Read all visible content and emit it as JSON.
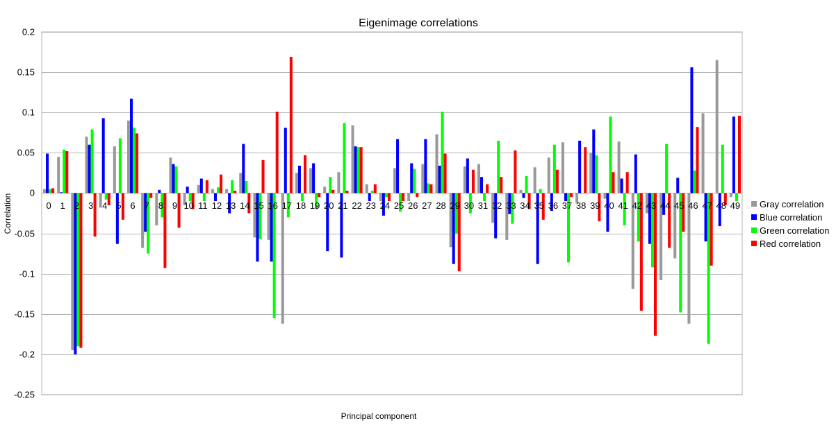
{
  "chart_data": {
    "type": "bar",
    "title": "Eigenimage correlations",
    "xlabel": "Principal component",
    "ylabel": "Correlation",
    "ylim": [
      -0.25,
      0.2
    ],
    "yticks": [
      0.2,
      0.15,
      0.1,
      0.05,
      0,
      -0.05,
      -0.1,
      -0.15,
      -0.2,
      -0.25
    ],
    "ytick_labels": [
      "0.2",
      "0.15",
      "0.1",
      "0.05",
      "0",
      "-0.05",
      "-0.1",
      "-0.15",
      "-0.2",
      "-0.25"
    ],
    "grid": "horizontal",
    "legend_position": "right",
    "categories": [
      "0",
      "1",
      "2",
      "3",
      "4",
      "5",
      "6",
      "7",
      "8",
      "9",
      "10",
      "11",
      "12",
      "13",
      "14",
      "15",
      "16",
      "17",
      "18",
      "19",
      "20",
      "21",
      "22",
      "23",
      "24",
      "25",
      "26",
      "27",
      "28",
      "29",
      "30",
      "31",
      "32",
      "33",
      "34",
      "35",
      "36",
      "37",
      "38",
      "39",
      "40",
      "41",
      "42",
      "43",
      "44",
      "45",
      "46",
      "47",
      "48",
      "49"
    ],
    "series": [
      {
        "name": "Gray correlation",
        "color": "#999999",
        "values": [
          0.005,
          0.045,
          -0.195,
          0.07,
          -0.018,
          0.058,
          0.09,
          -0.068,
          -0.04,
          0.044,
          -0.015,
          0.01,
          0.005,
          0.005,
          0.025,
          -0.055,
          -0.058,
          -0.162,
          0.025,
          0.031,
          0.008,
          0.026,
          0.084,
          0.011,
          -0.01,
          0.031,
          -0.01,
          0.036,
          0.073,
          -0.067,
          0.033,
          0.036,
          -0.037,
          -0.058,
          0.004,
          0.032,
          0.044,
          0.063,
          -0.012,
          0.05,
          -0.007,
          0.064,
          -0.119,
          -0.025,
          -0.108,
          -0.081,
          -0.162,
          0.099,
          0.165,
          -0.005
        ]
      },
      {
        "name": "Blue correlation",
        "color": "#0000ff",
        "values": [
          0.049,
          0.001,
          -0.2,
          0.06,
          0.093,
          -0.063,
          0.117,
          -0.048,
          0.004,
          0.036,
          0.008,
          0.018,
          -0.01,
          -0.025,
          0.061,
          -0.085,
          -0.085,
          0.081,
          0.034,
          0.037,
          -0.072,
          -0.08,
          0.058,
          -0.01,
          -0.028,
          0.067,
          0.037,
          0.067,
          0.034,
          -0.088,
          0.043,
          0.02,
          -0.056,
          -0.026,
          -0.006,
          -0.088,
          -0.022,
          -0.01,
          0.065,
          0.079,
          -0.048,
          0.018,
          0.048,
          -0.063,
          -0.027,
          0.019,
          0.156,
          -0.06,
          -0.041,
          0.095
        ]
      },
      {
        "name": "Green correlation",
        "color": "#00ff00",
        "values": [
          0.005,
          0.054,
          -0.19,
          0.079,
          -0.008,
          0.068,
          0.081,
          -0.075,
          -0.03,
          0.033,
          -0.01,
          -0.01,
          0.007,
          0.016,
          0.015,
          -0.057,
          -0.155,
          -0.03,
          -0.01,
          -0.02,
          0.02,
          0.087,
          0.057,
          0.003,
          -0.005,
          -0.023,
          0.03,
          0.012,
          0.101,
          -0.05,
          -0.025,
          -0.01,
          0.065,
          -0.038,
          0.021,
          0.005,
          0.06,
          -0.086,
          0.0,
          0.047,
          0.095,
          -0.04,
          -0.06,
          -0.092,
          0.061,
          -0.148,
          0.028,
          -0.187,
          0.06,
          -0.01
        ]
      },
      {
        "name": "Red correlation",
        "color": "#ff0000",
        "values": [
          0.006,
          0.052,
          -0.192,
          -0.054,
          -0.015,
          -0.033,
          0.074,
          -0.006,
          -0.093,
          -0.043,
          -0.02,
          0.016,
          0.023,
          0.003,
          -0.025,
          0.041,
          0.101,
          0.169,
          0.047,
          -0.005,
          0.004,
          0.003,
          0.057,
          0.011,
          -0.01,
          -0.01,
          -0.005,
          0.011,
          0.049,
          -0.097,
          0.029,
          0.011,
          0.02,
          0.053,
          -0.02,
          -0.033,
          0.029,
          -0.005,
          0.057,
          -0.035,
          0.026,
          0.026,
          -0.146,
          -0.177,
          -0.068,
          -0.048,
          0.082,
          -0.09,
          -0.015,
          0.096
        ]
      }
    ]
  }
}
